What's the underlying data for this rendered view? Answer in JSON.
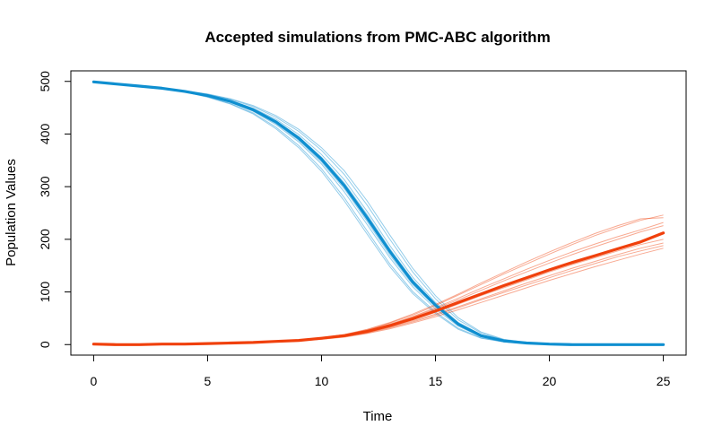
{
  "chart_data": {
    "type": "line",
    "title": "Accepted simulations from PMC-ABC algorithm",
    "xlabel": "Time",
    "ylabel": "Population Values",
    "xlim": [
      -1,
      26
    ],
    "ylim": [
      -20,
      520
    ],
    "xticks": [
      0,
      5,
      10,
      15,
      20,
      25
    ],
    "yticks": [
      0,
      100,
      200,
      300,
      400,
      500
    ],
    "grid": false,
    "legend": "none",
    "x": [
      0,
      1,
      2,
      3,
      4,
      5,
      6,
      7,
      8,
      9,
      10,
      11,
      12,
      13,
      14,
      15,
      16,
      17,
      18,
      19,
      20,
      21,
      22,
      23,
      24,
      25
    ],
    "series": [
      {
        "color": "#0f8fd0",
        "values": [
          499,
          495,
          491,
          487,
          481,
          473,
          462,
          446,
          423,
          392,
          352,
          302,
          241,
          177,
          119,
          75,
          39,
          17,
          7,
          3,
          1,
          0,
          0,
          0,
          0,
          0
        ],
        "ensemble": [
          [
            499,
            495,
            491,
            487,
            481,
            474,
            464,
            449,
            428,
            399,
            361,
            313,
            253,
            188,
            128,
            80,
            42,
            19,
            8,
            3,
            1,
            0,
            0,
            0,
            0,
            0
          ],
          [
            499,
            495,
            491,
            487,
            481,
            472,
            460,
            443,
            418,
            385,
            343,
            290,
            228,
            165,
            110,
            68,
            35,
            15,
            6,
            2,
            1,
            0,
            0,
            0,
            0,
            0
          ],
          [
            499,
            495,
            491,
            487,
            482,
            475,
            466,
            452,
            432,
            405,
            369,
            323,
            265,
            200,
            138,
            87,
            47,
            22,
            9,
            4,
            1,
            0,
            0,
            0,
            0,
            0
          ],
          [
            499,
            495,
            491,
            487,
            480,
            471,
            458,
            440,
            413,
            378,
            334,
            279,
            216,
            153,
            101,
            62,
            31,
            13,
            5,
            2,
            0,
            0,
            0,
            0,
            0,
            0
          ],
          [
            499,
            495,
            491,
            487,
            481,
            473,
            463,
            447,
            425,
            395,
            356,
            307,
            247,
            182,
            123,
            77,
            40,
            18,
            7,
            3,
            1,
            0,
            0,
            0,
            0,
            0
          ],
          [
            499,
            495,
            491,
            487,
            481,
            472,
            461,
            444,
            420,
            388,
            347,
            296,
            234,
            170,
            114,
            72,
            37,
            16,
            6,
            2,
            1,
            0,
            0,
            0,
            0,
            0
          ],
          [
            499,
            495,
            491,
            487,
            482,
            476,
            467,
            454,
            435,
            409,
            374,
            330,
            273,
            208,
            145,
            93,
            51,
            24,
            10,
            4,
            1,
            0,
            0,
            0,
            0,
            0
          ],
          [
            499,
            495,
            491,
            487,
            480,
            470,
            457,
            438,
            410,
            374,
            329,
            273,
            210,
            148,
            97,
            59,
            29,
            12,
            5,
            2,
            0,
            0,
            0,
            0,
            0,
            0
          ]
        ]
      },
      {
        "color": "#f0400c",
        "values": [
          1,
          0,
          0,
          1,
          1,
          2,
          3,
          4,
          6,
          8,
          12,
          17,
          25,
          36,
          49,
          64,
          80,
          96,
          112,
          127,
          142,
          156,
          169,
          182,
          195,
          212
        ],
        "ensemble": [
          [
            1,
            0,
            0,
            1,
            1,
            2,
            3,
            4,
            6,
            9,
            13,
            19,
            28,
            41,
            56,
            74,
            94,
            114,
            134,
            153,
            172,
            190,
            207,
            222,
            236,
            246
          ],
          [
            1,
            0,
            0,
            1,
            1,
            2,
            3,
            4,
            5,
            7,
            10,
            14,
            21,
            30,
            41,
            53,
            66,
            80,
            94,
            108,
            122,
            135,
            148,
            160,
            172,
            183
          ],
          [
            1,
            0,
            0,
            1,
            1,
            2,
            3,
            4,
            6,
            9,
            13,
            18,
            27,
            39,
            53,
            70,
            88,
            107,
            125,
            143,
            160,
            176,
            191,
            205,
            218,
            232
          ],
          [
            1,
            0,
            0,
            1,
            1,
            2,
            3,
            4,
            6,
            8,
            11,
            16,
            23,
            33,
            45,
            58,
            72,
            87,
            102,
            117,
            131,
            145,
            158,
            171,
            183,
            193
          ],
          [
            1,
            0,
            0,
            1,
            1,
            2,
            3,
            4,
            6,
            8,
            12,
            17,
            26,
            38,
            52,
            68,
            85,
            103,
            121,
            138,
            155,
            171,
            186,
            200,
            214,
            226
          ],
          [
            1,
            0,
            0,
            1,
            1,
            2,
            3,
            4,
            5,
            7,
            11,
            15,
            22,
            32,
            43,
            56,
            70,
            85,
            99,
            113,
            127,
            141,
            154,
            167,
            178,
            188
          ],
          [
            1,
            0,
            0,
            1,
            1,
            2,
            3,
            4,
            6,
            9,
            13,
            19,
            29,
            42,
            58,
            76,
            96,
            117,
            137,
            157,
            176,
            194,
            211,
            226,
            239,
            241
          ],
          [
            1,
            0,
            0,
            1,
            1,
            2,
            3,
            4,
            6,
            8,
            12,
            17,
            24,
            35,
            47,
            61,
            77,
            93,
            108,
            123,
            138,
            152,
            165,
            178,
            190,
            200
          ]
        ]
      }
    ]
  }
}
